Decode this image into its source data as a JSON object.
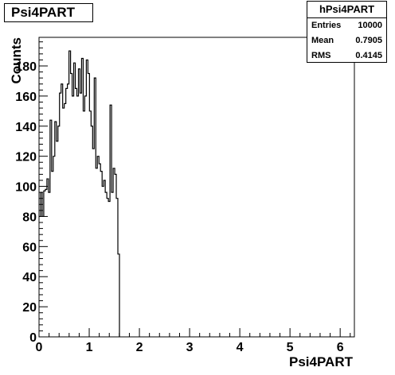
{
  "title": "Psi4PART",
  "stats": {
    "name": "hPsi4PART",
    "rows": [
      {
        "label": "Entries",
        "value": "10000"
      },
      {
        "label": "Mean",
        "value": "0.7905"
      },
      {
        "label": "RMS",
        "value": "0.4145"
      }
    ]
  },
  "chart_data": {
    "type": "bar",
    "style": "step-histogram",
    "xlabel": "Psi4PART",
    "ylabel": "Counts",
    "xlim": [
      0,
      6.283
    ],
    "ylim": [
      0,
      199
    ],
    "xticks": [
      "0",
      "1",
      "2",
      "3",
      "4",
      "5",
      "6"
    ],
    "yticks": [
      "0",
      "20",
      "40",
      "60",
      "80",
      "100",
      "120",
      "140",
      "160",
      "180"
    ],
    "ytick_values": [
      0,
      20,
      40,
      60,
      80,
      100,
      120,
      140,
      160,
      180
    ],
    "grid": false,
    "bin_width": 0.0314,
    "x": [
      0.0,
      0.031,
      0.063,
      0.094,
      0.126,
      0.157,
      0.188,
      0.22,
      0.251,
      0.283,
      0.314,
      0.346,
      0.377,
      0.408,
      0.44,
      0.471,
      0.503,
      0.534,
      0.565,
      0.597,
      0.628,
      0.66,
      0.691,
      0.723,
      0.754,
      0.785,
      0.817,
      0.848,
      0.88,
      0.911,
      0.942,
      0.974,
      1.005,
      1.037,
      1.068,
      1.1,
      1.131,
      1.162,
      1.194,
      1.225,
      1.257,
      1.288,
      1.319,
      1.351,
      1.382,
      1.414,
      1.445,
      1.477,
      1.508,
      1.539,
      1.571
    ],
    "values": [
      80,
      96,
      80,
      97,
      98,
      105,
      96,
      144,
      110,
      120,
      143,
      130,
      140,
      162,
      168,
      152,
      155,
      165,
      168,
      190,
      175,
      160,
      182,
      165,
      160,
      178,
      162,
      185,
      150,
      160,
      184,
      175,
      150,
      140,
      125,
      172,
      112,
      120,
      115,
      110,
      100,
      104,
      96,
      92,
      90,
      154,
      96,
      112,
      108,
      92,
      55
    ]
  }
}
